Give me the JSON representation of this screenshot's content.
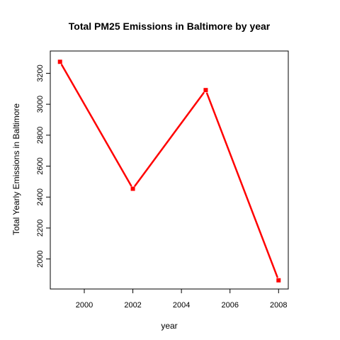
{
  "chart_data": {
    "type": "line",
    "title": "Total PM25 Emissions in Baltimore by year",
    "xlabel": "year",
    "ylabel": "Total Yearly Emissions in Baltimore",
    "x": [
      1999,
      2002,
      2005,
      2008
    ],
    "series": [
      {
        "values": [
          3274.18,
          2453.92,
          3091.35,
          1862.28
        ],
        "color": "#ff0000"
      }
    ],
    "xlim": [
      1998.6,
      2008.4
    ],
    "ylim": [
      1806,
      3344
    ],
    "x_ticks": [
      2000,
      2002,
      2004,
      2006,
      2008
    ],
    "y_ticks": [
      2000,
      2200,
      2400,
      2600,
      2800,
      3000,
      3200
    ],
    "grid": false,
    "marker": "square"
  }
}
